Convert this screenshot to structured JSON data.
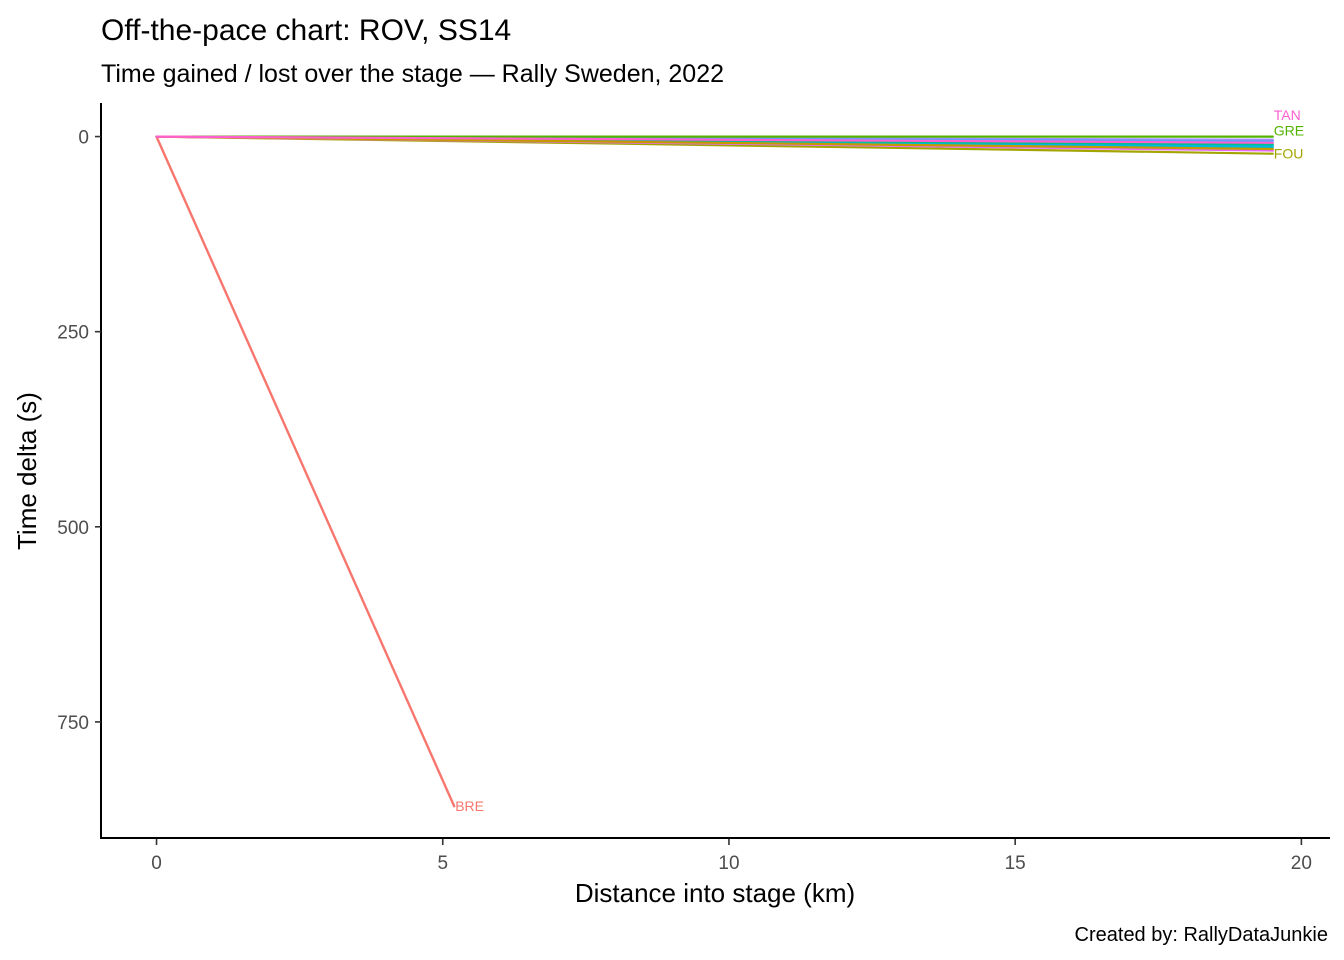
{
  "chart_data": {
    "type": "line",
    "title": "Off-the-pace chart: ROV, SS14",
    "subtitle": "Time gained / lost over the stage — Rally Sweden, 2022",
    "xlabel": "Distance into stage (km)",
    "ylabel": "Time delta (s)",
    "caption": "Created by: RallyDataJunkie",
    "xlim": [
      -0.97,
      20.5
    ],
    "ylim": [
      -43,
      900
    ],
    "y_reversed": true,
    "x_ticks": [
      0,
      5,
      10,
      15,
      20
    ],
    "x_tick_labels": [
      "0",
      "5",
      "10",
      "15",
      "20"
    ],
    "y_ticks": [
      0,
      250,
      500,
      750
    ],
    "y_tick_labels": [
      "0",
      "250",
      "500",
      "750"
    ],
    "grid": false,
    "legend": "none",
    "series": [
      {
        "color": "#00BFC4",
        "x": [
          0,
          19.5
        ],
        "y": [
          0,
          14
        ],
        "label": ""
      },
      {
        "color": "#00B6EB",
        "x": [
          0,
          19.5
        ],
        "y": [
          0,
          12
        ],
        "label": ""
      },
      {
        "color": "#A58AFF",
        "x": [
          0,
          19.5
        ],
        "y": [
          0,
          4
        ],
        "label": ""
      },
      {
        "color": "#619CFF",
        "x": [
          0,
          19.5
        ],
        "y": [
          0,
          6
        ],
        "label": ""
      },
      {
        "color": "#F8766D",
        "x": [
          0,
          5.2
        ],
        "y": [
          0,
          858
        ],
        "label": "BRE"
      },
      {
        "color": "#A3A500",
        "x": [
          0,
          19.5
        ],
        "y": [
          0,
          22
        ],
        "label": "FOU"
      },
      {
        "color": "#00C08B",
        "x": [
          0,
          19.5
        ],
        "y": [
          0,
          10
        ],
        "label": ""
      },
      {
        "color": "#53B400",
        "x": [
          0,
          19.5
        ],
        "y": [
          0,
          0
        ],
        "label": "GRE"
      },
      {
        "color": "#FB61D7",
        "x": [
          0,
          19.5
        ],
        "y": [
          0,
          17
        ],
        "label": ""
      },
      {
        "color": "#E76BF3",
        "x": [
          0,
          19.5
        ],
        "y": [
          0,
          18
        ],
        "label": ""
      },
      {
        "color": "#C49A00",
        "x": [
          0,
          19.5
        ],
        "y": [
          0,
          16
        ],
        "label": ""
      },
      {
        "color": "#FF5FCF",
        "x": [
          0,
          19.5
        ],
        "y": [
          0,
          8
        ],
        "label": "TAN"
      }
    ]
  }
}
